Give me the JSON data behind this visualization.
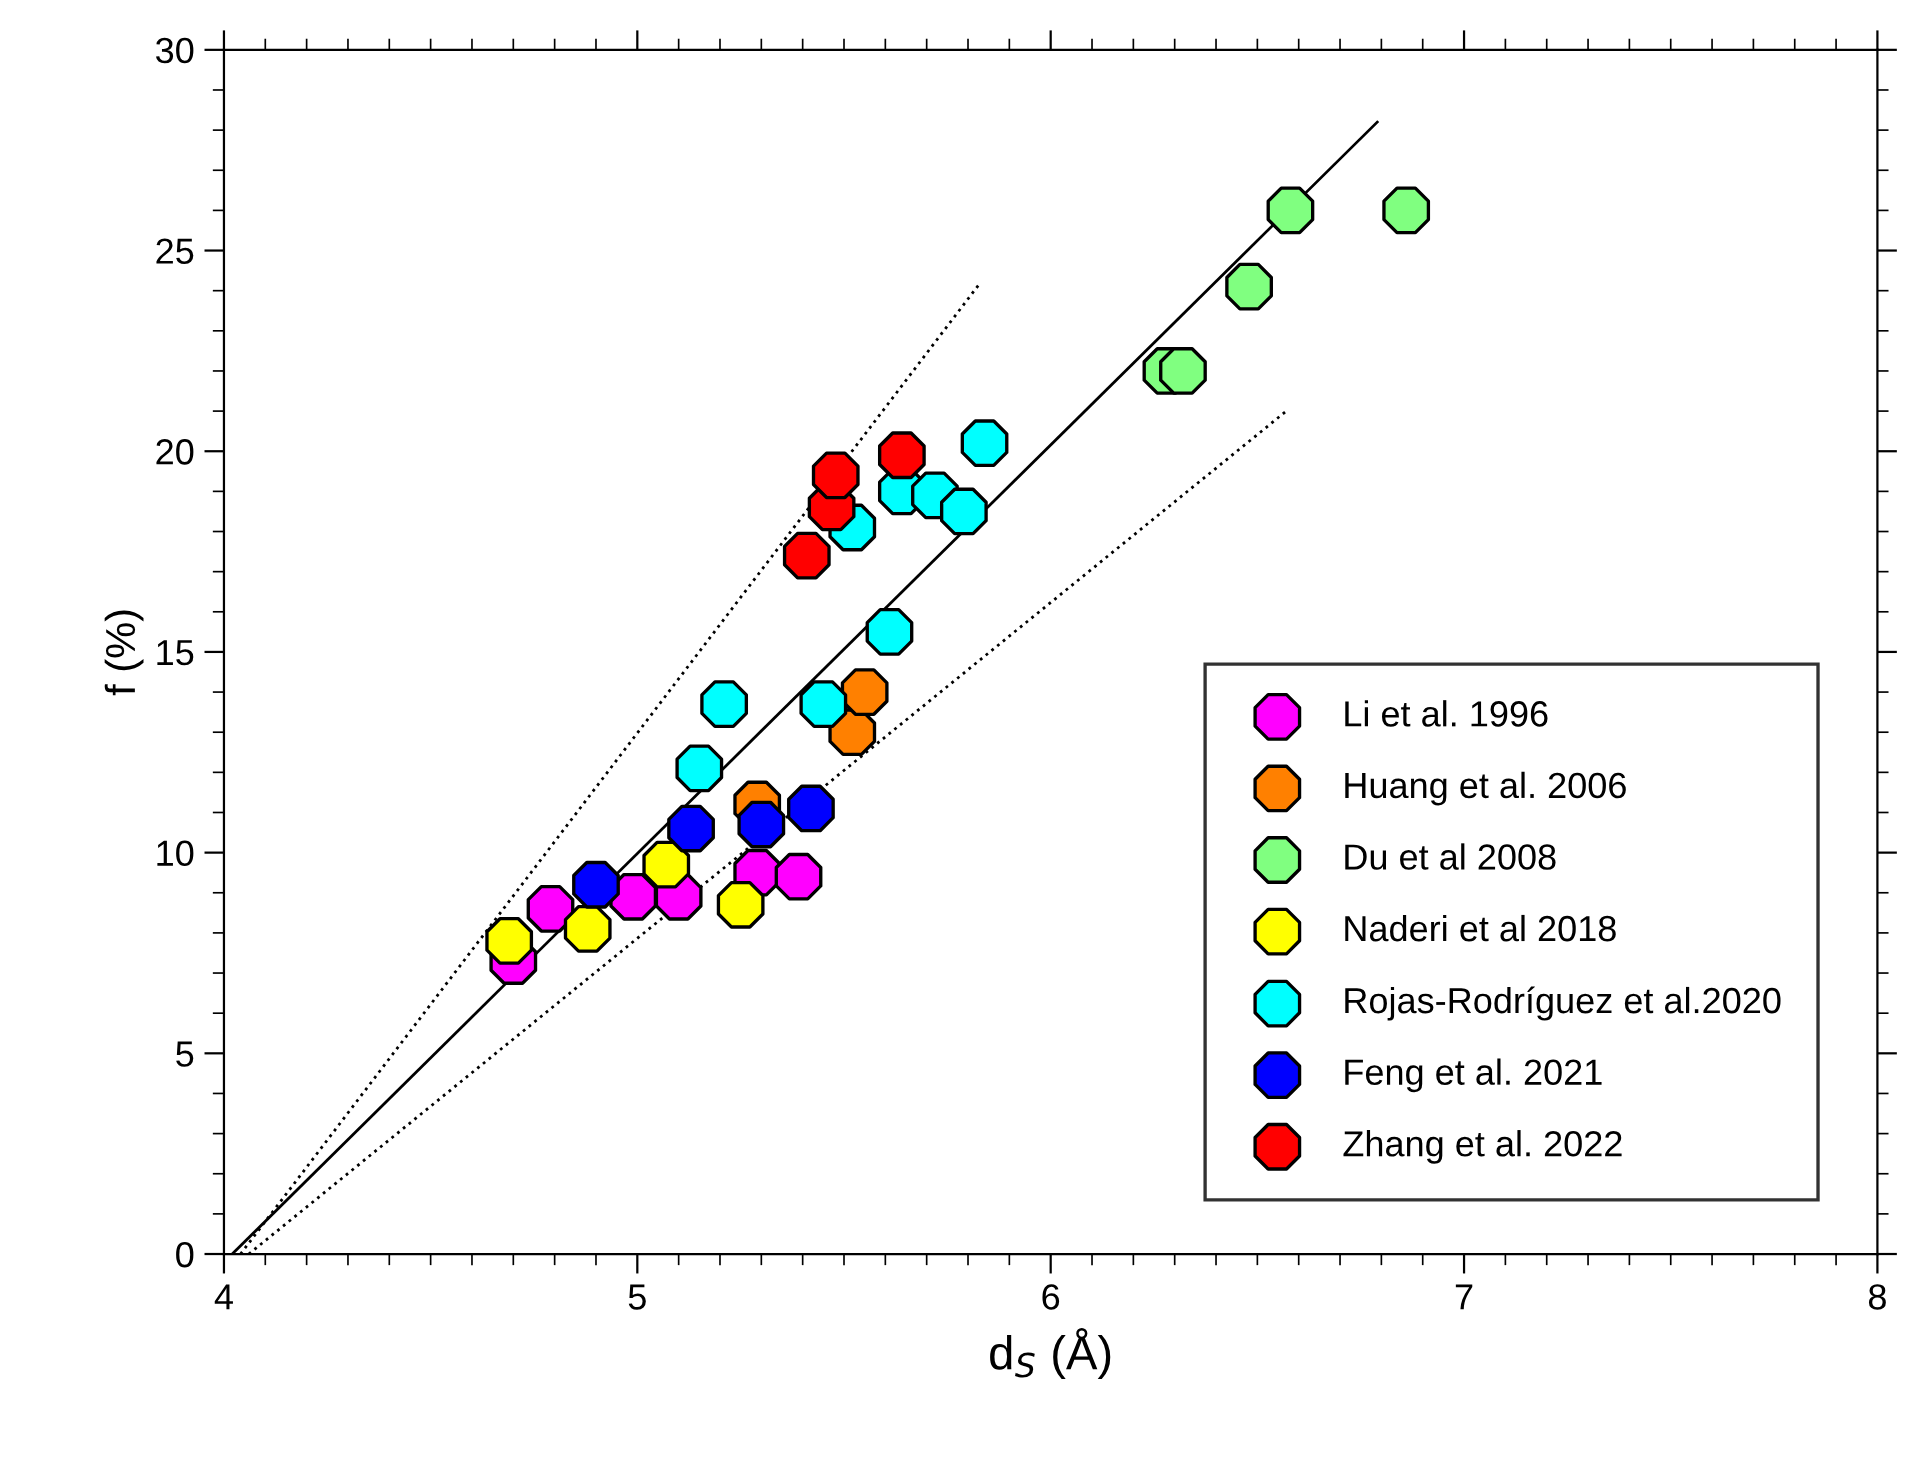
{
  "chart_data": {
    "type": "scatter",
    "xlabel": "d$_{S}$ (Å)",
    "ylabel": "f (%)",
    "xlim": [
      4,
      8
    ],
    "xticks": [
      4,
      5,
      6,
      7,
      8
    ],
    "ylim": [
      0,
      30
    ],
    "yticks": [
      0,
      5,
      10,
      15,
      20,
      25,
      30
    ],
    "grid": false,
    "legend": "bottom right",
    "marker": "circle",
    "series": [
      {
        "name": "Li et al. 1996",
        "color": "#ff00ff",
        "x": [
          4.7,
          4.79,
          4.99,
          5.1,
          5.29,
          5.39
        ],
        "values": [
          7.3,
          8.6,
          8.9,
          8.9,
          9.5,
          9.4
        ]
      },
      {
        "name": "Huang et al. 2006",
        "color": "#ff8000",
        "x": [
          5.29,
          5.52,
          5.55
        ],
        "values": [
          11.2,
          13.0,
          14.0
        ]
      },
      {
        "name": "Du et al 2008",
        "color": "#80ff80",
        "x": [
          6.28,
          6.32,
          6.48,
          6.58,
          6.86
        ],
        "values": [
          22.0,
          22.0,
          24.1,
          26.0,
          26.0
        ]
      },
      {
        "name": "Naderi et al 2018",
        "color": "#ffff00",
        "x": [
          4.69,
          4.88,
          5.07,
          5.25
        ],
        "values": [
          7.8,
          8.1,
          9.7,
          8.7
        ]
      },
      {
        "name": "Rojas-Rodríguez et al.2020",
        "color": "#00ffff",
        "x": [
          5.15,
          5.21,
          5.45,
          5.61,
          5.52,
          5.64,
          5.72,
          5.79,
          5.84
        ],
        "values": [
          12.1,
          13.7,
          13.7,
          15.5,
          18.1,
          19.0,
          18.9,
          18.5,
          20.2
        ]
      },
      {
        "name": "Feng et al. 2021",
        "color": "#0000ff",
        "x": [
          4.9,
          5.13,
          5.3,
          5.42
        ],
        "values": [
          9.2,
          10.6,
          10.7,
          11.1
        ]
      },
      {
        "name": "Zhang et al. 2022",
        "color": "#ff0000",
        "x": [
          5.41,
          5.47,
          5.48,
          5.64
        ],
        "values": [
          17.4,
          18.6,
          19.4,
          19.9
        ]
      },
      {
        "type": "line",
        "marker": "none",
        "color": "#000000",
        "line_style": "solid",
        "x": [
          4.02,
          6.79
        ],
        "values": [
          0,
          28.2
        ]
      },
      {
        "type": "line",
        "marker": "none",
        "color": "#000000",
        "line_style": "dotted",
        "x": [
          4.04,
          5.83
        ],
        "values": [
          0,
          24.2
        ]
      },
      {
        "type": "line",
        "marker": "none",
        "color": "#000000",
        "line_style": "dotted",
        "x": [
          4.06,
          6.57
        ],
        "values": [
          0,
          21.0
        ]
      }
    ]
  }
}
